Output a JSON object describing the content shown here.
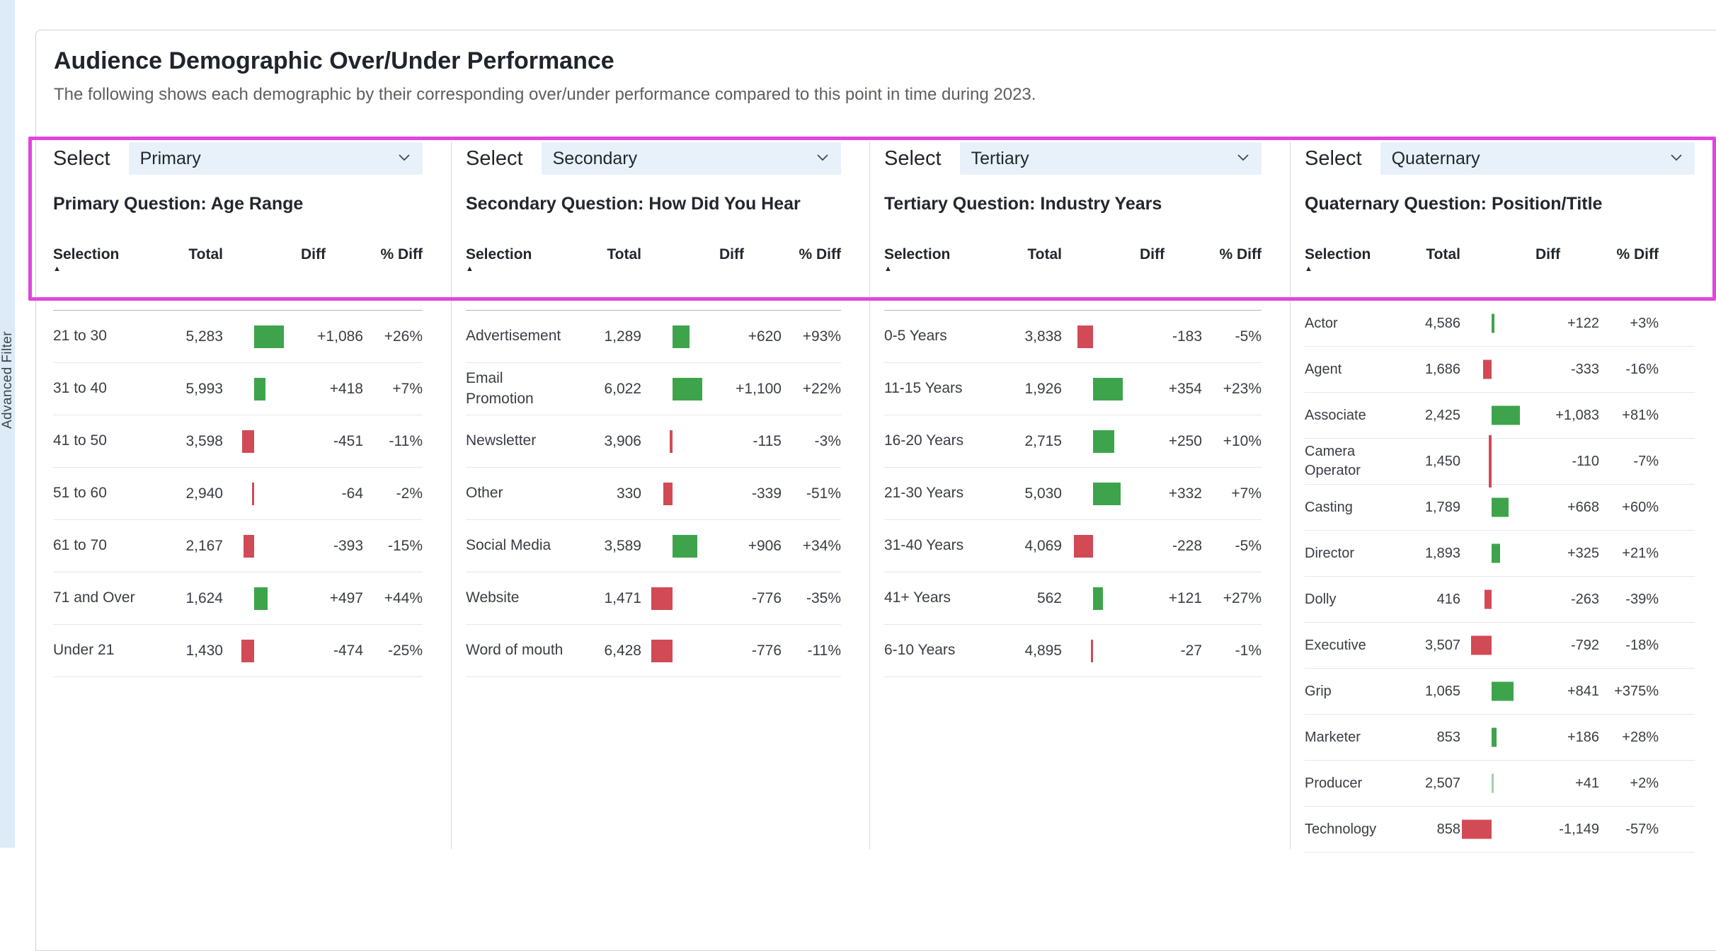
{
  "page": {
    "title": "Audience Demographic Over/Under Performance",
    "subtitle": "The following shows each demographic by their corresponding over/under performance compared to this point in time during 2023.",
    "left_panel_label": "Advanced Filter"
  },
  "select_label": "Select",
  "table_headers": {
    "selection": "Selection",
    "total": "Total",
    "diff": "Diff",
    "pct_diff": "% Diff"
  },
  "icons": {
    "dropdown": "chevron-down-icon",
    "sort": "sort-ascending-icon"
  },
  "colors": {
    "positive": "#3ea44b",
    "negative": "#d14a55",
    "highlight": "#e145dc",
    "dropdown_bg": "#e8f1fa"
  },
  "columns": [
    {
      "select_value": "Primary",
      "question": "Primary Question: Age Range",
      "rows": [
        {
          "selection": "21 to 30",
          "total": "5,283",
          "diff": "+1,086",
          "pct": "+26%",
          "value": 1086
        },
        {
          "selection": "31 to 40",
          "total": "5,993",
          "diff": "+418",
          "pct": "+7%",
          "value": 418
        },
        {
          "selection": "41 to 50",
          "total": "3,598",
          "diff": "-451",
          "pct": "-11%",
          "value": -451
        },
        {
          "selection": "51 to 60",
          "total": "2,940",
          "diff": "-64",
          "pct": "-2%",
          "value": -64
        },
        {
          "selection": "61 to 70",
          "total": "2,167",
          "diff": "-393",
          "pct": "-15%",
          "value": -393
        },
        {
          "selection": "71 and Over",
          "total": "1,624",
          "diff": "+497",
          "pct": "+44%",
          "value": 497
        },
        {
          "selection": "Under 21",
          "total": "1,430",
          "diff": "-474",
          "pct": "-25%",
          "value": -474
        }
      ]
    },
    {
      "select_value": "Secondary",
      "question": "Secondary Question: How Did You Hear",
      "rows": [
        {
          "selection": "Advertisement",
          "total": "1,289",
          "diff": "+620",
          "pct": "+93%",
          "value": 620
        },
        {
          "selection": "Email Promotion",
          "total": "6,022",
          "diff": "+1,100",
          "pct": "+22%",
          "value": 1100
        },
        {
          "selection": "Newsletter",
          "total": "3,906",
          "diff": "-115",
          "pct": "-3%",
          "value": -115
        },
        {
          "selection": "Other",
          "total": "330",
          "diff": "-339",
          "pct": "-51%",
          "value": -339
        },
        {
          "selection": "Social Media",
          "total": "3,589",
          "diff": "+906",
          "pct": "+34%",
          "value": 906
        },
        {
          "selection": "Website",
          "total": "1,471",
          "diff": "-776",
          "pct": "-35%",
          "value": -776
        },
        {
          "selection": "Word of mouth",
          "total": "6,428",
          "diff": "-776",
          "pct": "-11%",
          "value": -776
        }
      ]
    },
    {
      "select_value": "Tertiary",
      "question": "Tertiary Question: Industry Years",
      "rows": [
        {
          "selection": "0-5 Years",
          "total": "3,838",
          "diff": "-183",
          "pct": "-5%",
          "value": -183
        },
        {
          "selection": "11-15 Years",
          "total": "1,926",
          "diff": "+354",
          "pct": "+23%",
          "value": 354
        },
        {
          "selection": "16-20 Years",
          "total": "2,715",
          "diff": "+250",
          "pct": "+10%",
          "value": 250
        },
        {
          "selection": "21-30 Years",
          "total": "5,030",
          "diff": "+332",
          "pct": "+7%",
          "value": 332
        },
        {
          "selection": "31-40 Years",
          "total": "4,069",
          "diff": "-228",
          "pct": "-5%",
          "value": -228
        },
        {
          "selection": "41+ Years",
          "total": "562",
          "diff": "+121",
          "pct": "+27%",
          "value": 121
        },
        {
          "selection": "6-10 Years",
          "total": "4,895",
          "diff": "-27",
          "pct": "-1%",
          "value": -27
        }
      ]
    },
    {
      "select_value": "Quaternary",
      "question": "Quaternary Question: Position/Title",
      "rows": [
        {
          "selection": "Actor",
          "total": "4,586",
          "diff": "+122",
          "pct": "+3%",
          "value": 122
        },
        {
          "selection": "Agent",
          "total": "1,686",
          "diff": "-333",
          "pct": "-16%",
          "value": -333
        },
        {
          "selection": "Associate",
          "total": "2,425",
          "diff": "+1,083",
          "pct": "+81%",
          "value": 1083
        },
        {
          "selection": "Camera Operator",
          "total": "1,450",
          "diff": "-110",
          "pct": "-7%",
          "value": -110
        },
        {
          "selection": "Casting",
          "total": "1,789",
          "diff": "+668",
          "pct": "+60%",
          "value": 668
        },
        {
          "selection": "Director",
          "total": "1,893",
          "diff": "+325",
          "pct": "+21%",
          "value": 325
        },
        {
          "selection": "Dolly",
          "total": "416",
          "diff": "-263",
          "pct": "-39%",
          "value": -263
        },
        {
          "selection": "Executive",
          "total": "3,507",
          "diff": "-792",
          "pct": "-18%",
          "value": -792
        },
        {
          "selection": "Grip",
          "total": "1,065",
          "diff": "+841",
          "pct": "+375%",
          "value": 841
        },
        {
          "selection": "Marketer",
          "total": "853",
          "diff": "+186",
          "pct": "+28%",
          "value": 186
        },
        {
          "selection": "Producer",
          "total": "2,507",
          "diff": "+41",
          "pct": "+2%",
          "value": 41
        },
        {
          "selection": "Technology",
          "total": "858",
          "diff": "-1,149",
          "pct": "-57%",
          "value": -1149
        }
      ]
    }
  ]
}
